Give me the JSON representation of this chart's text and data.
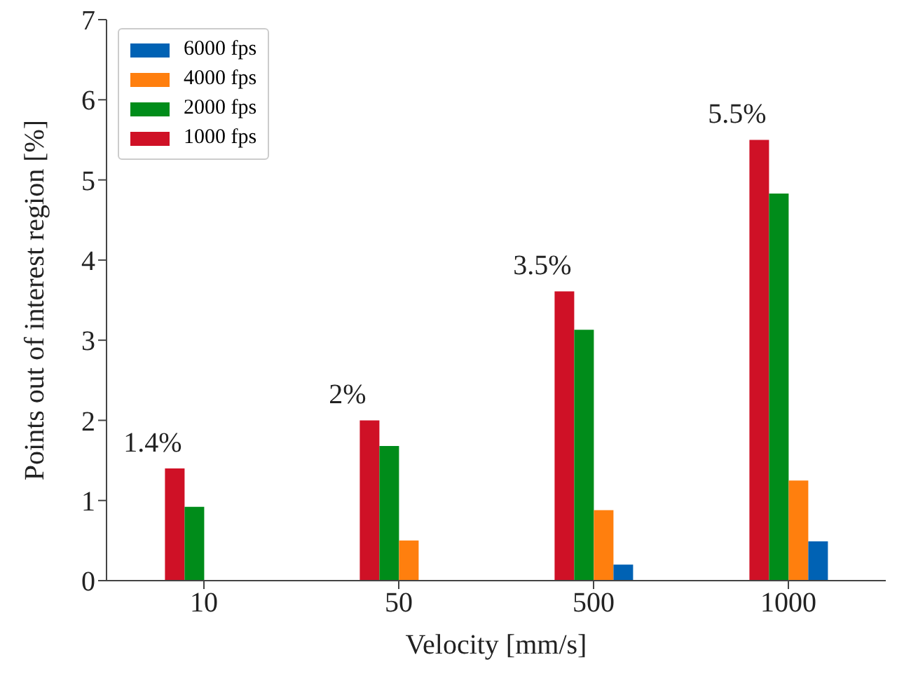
{
  "chart_data": {
    "type": "bar",
    "xlabel": "Velocity [mm/s]",
    "ylabel": "Points out of interest region [%]",
    "categories": [
      "10",
      "50",
      "500",
      "1000"
    ],
    "series": [
      {
        "name": "6000 fps",
        "color": "#0062b4",
        "values": [
          null,
          null,
          0.2,
          0.49
        ]
      },
      {
        "name": "4000 fps",
        "color": "#ff7f0e",
        "values": [
          null,
          0.5,
          0.88,
          1.25
        ]
      },
      {
        "name": "2000 fps",
        "color": "#008c1a",
        "values": [
          0.92,
          1.68,
          3.13,
          4.83
        ]
      },
      {
        "name": "1000 fps",
        "color": "#cf1126",
        "values": [
          1.4,
          2.0,
          3.61,
          5.5
        ]
      }
    ],
    "annotations": [
      "1.4%",
      "2%",
      "3.5%",
      "5.5%"
    ],
    "ylim": [
      0,
      7
    ],
    "yticks": [
      0,
      1,
      2,
      3,
      4,
      5,
      6,
      7
    ],
    "grid": false,
    "legend": "top left"
  }
}
